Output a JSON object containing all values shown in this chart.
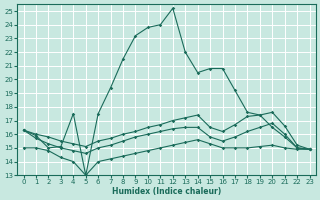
{
  "xlabel": "Humidex (Indice chaleur)",
  "bg_color": "#c8e8e0",
  "grid_color": "#ffffff",
  "line_color": "#1a6b5a",
  "xlim": [
    -0.5,
    23.5
  ],
  "ylim": [
    13,
    25.5
  ],
  "xticks": [
    0,
    1,
    2,
    3,
    4,
    5,
    6,
    7,
    8,
    9,
    10,
    11,
    12,
    13,
    14,
    15,
    16,
    17,
    18,
    19,
    20,
    21,
    22,
    23
  ],
  "yticks": [
    13,
    14,
    15,
    16,
    17,
    18,
    19,
    20,
    21,
    22,
    23,
    24,
    25
  ],
  "line1_x": [
    0,
    1,
    2,
    3,
    4,
    5,
    6,
    7,
    8,
    9,
    10,
    11,
    12,
    13,
    14,
    15,
    16,
    17,
    18,
    19,
    20,
    21,
    22,
    23
  ],
  "line1_y": [
    16.3,
    15.9,
    15.0,
    15.1,
    17.5,
    13.0,
    17.5,
    19.4,
    21.5,
    23.2,
    23.8,
    24.0,
    25.2,
    22.0,
    20.5,
    20.8,
    20.8,
    19.2,
    17.6,
    17.4,
    16.5,
    15.8,
    15.0,
    14.9
  ],
  "line2_x": [
    0,
    1,
    2,
    3,
    4,
    5,
    6,
    7,
    8,
    9,
    10,
    11,
    12,
    13,
    14,
    15,
    16,
    17,
    18,
    19,
    20,
    21,
    22,
    23
  ],
  "line2_y": [
    16.3,
    16.0,
    15.8,
    15.5,
    15.3,
    15.1,
    15.5,
    15.7,
    16.0,
    16.2,
    16.5,
    16.7,
    17.0,
    17.2,
    17.4,
    16.5,
    16.2,
    16.7,
    17.3,
    17.4,
    17.6,
    16.6,
    15.2,
    14.9
  ],
  "line3_x": [
    0,
    1,
    2,
    3,
    4,
    5,
    6,
    7,
    8,
    9,
    10,
    11,
    12,
    13,
    14,
    15,
    16,
    17,
    18,
    19,
    20,
    21,
    22,
    23
  ],
  "line3_y": [
    16.3,
    15.7,
    15.3,
    15.0,
    14.8,
    14.6,
    15.0,
    15.2,
    15.5,
    15.8,
    16.0,
    16.2,
    16.4,
    16.5,
    16.5,
    15.8,
    15.5,
    15.8,
    16.2,
    16.5,
    16.8,
    16.0,
    15.0,
    14.9
  ],
  "line4_x": [
    0,
    1,
    2,
    3,
    4,
    5,
    6,
    7,
    8,
    9,
    10,
    11,
    12,
    13,
    14,
    15,
    16,
    17,
    18,
    19,
    20,
    21,
    22,
    23
  ],
  "line4_y": [
    15.0,
    15.0,
    14.8,
    14.3,
    14.0,
    13.0,
    14.0,
    14.2,
    14.4,
    14.6,
    14.8,
    15.0,
    15.2,
    15.4,
    15.6,
    15.3,
    15.0,
    15.0,
    15.0,
    15.1,
    15.2,
    15.0,
    14.9,
    14.9
  ]
}
